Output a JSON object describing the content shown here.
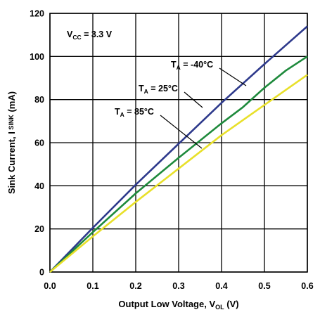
{
  "chart_data": {
    "type": "line",
    "xlabel": "Output Low Voltage, V",
    "xlabel_sub": "OL",
    "xlabel_unit": " (V)",
    "ylabel": "Sink Current, I",
    "ylabel_sub": "SINK",
    "ylabel_unit": " (mA)",
    "xlim": [
      0,
      0.6
    ],
    "ylim": [
      0,
      120
    ],
    "xticks": [
      0,
      0.1,
      0.2,
      0.3,
      0.4,
      0.5,
      0.6
    ],
    "xtick_labels": [
      "0.0",
      "0.1",
      "0.2",
      "0.3",
      "0.4",
      "0.5",
      "0.6"
    ],
    "yticks": [
      0,
      20,
      40,
      60,
      80,
      100,
      120
    ],
    "ytick_labels": [
      "0",
      "20",
      "40",
      "60",
      "80",
      "100",
      "120"
    ],
    "grid": true,
    "series": [
      {
        "name": "T_A = -40°C",
        "color": "#2e3a8c",
        "x": [
          0,
          0.1,
          0.2,
          0.3,
          0.4,
          0.5,
          0.6
        ],
        "y": [
          0,
          20.5,
          40.5,
          59.5,
          78.5,
          96.5,
          114
        ]
      },
      {
        "name": "T_A = 25°C",
        "color": "#1e8a3c",
        "x": [
          0,
          0.1,
          0.2,
          0.3,
          0.4,
          0.45,
          0.5,
          0.55,
          0.6
        ],
        "y": [
          0,
          18.5,
          36.5,
          53,
          69,
          76.5,
          85.5,
          93.5,
          100
        ]
      },
      {
        "name": "T_A = 85°C",
        "color": "#e8e02a",
        "x": [
          0,
          0.1,
          0.2,
          0.3,
          0.4,
          0.5,
          0.6
        ],
        "y": [
          0,
          16.5,
          32.5,
          48,
          63.5,
          77.5,
          91.5
        ]
      }
    ],
    "annotations": [
      {
        "main": "T",
        "sub": "A",
        "rest": " = -40°C",
        "series": 0
      },
      {
        "main": "T",
        "sub": "A",
        "rest": " = 25°C",
        "series": 1
      },
      {
        "main": "T",
        "sub": "A",
        "rest": " = 85°C",
        "series": 2
      },
      {
        "main": "V",
        "sub": "CC",
        "rest": " = 3.3 V"
      }
    ]
  }
}
